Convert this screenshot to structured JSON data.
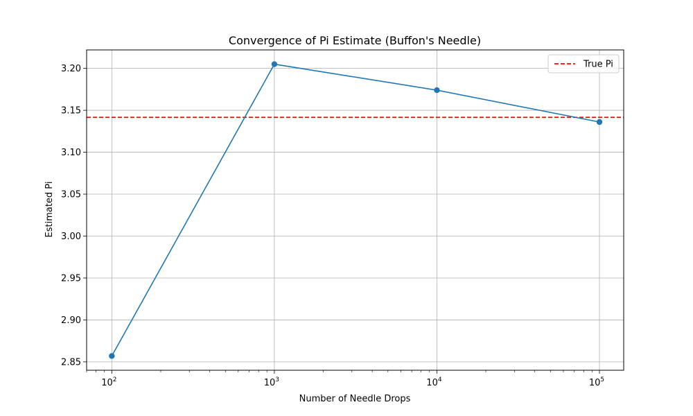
{
  "chart_data": {
    "type": "line",
    "title": "Convergence of Pi Estimate (Buffon's Needle)",
    "xlabel": "Number of Needle Drops",
    "ylabel": "Estimated Pi",
    "xscale": "log",
    "xlim": [
      70,
      141000
    ],
    "ylim": [
      2.84,
      3.222
    ],
    "x": [
      100,
      1000,
      10000,
      100000
    ],
    "series": [
      {
        "values": [
          2.857,
          3.205,
          3.174,
          3.136
        ],
        "color": "#1f77b4",
        "marker": "circle"
      }
    ],
    "reference_line": {
      "label": "True Pi",
      "value": 3.14159,
      "color": "#ff0000",
      "style": "dashed"
    },
    "x_ticks": [
      {
        "value": 100,
        "base": "10",
        "exp": "2"
      },
      {
        "value": 1000,
        "base": "10",
        "exp": "3"
      },
      {
        "value": 10000,
        "base": "10",
        "exp": "4"
      },
      {
        "value": 100000,
        "base": "10",
        "exp": "5"
      }
    ],
    "y_ticks": [
      "2.85",
      "2.90",
      "2.95",
      "3.00",
      "3.05",
      "3.10",
      "3.15",
      "3.20"
    ],
    "grid": true,
    "legend": {
      "position": "top-right",
      "entries": [
        "True Pi"
      ]
    }
  }
}
